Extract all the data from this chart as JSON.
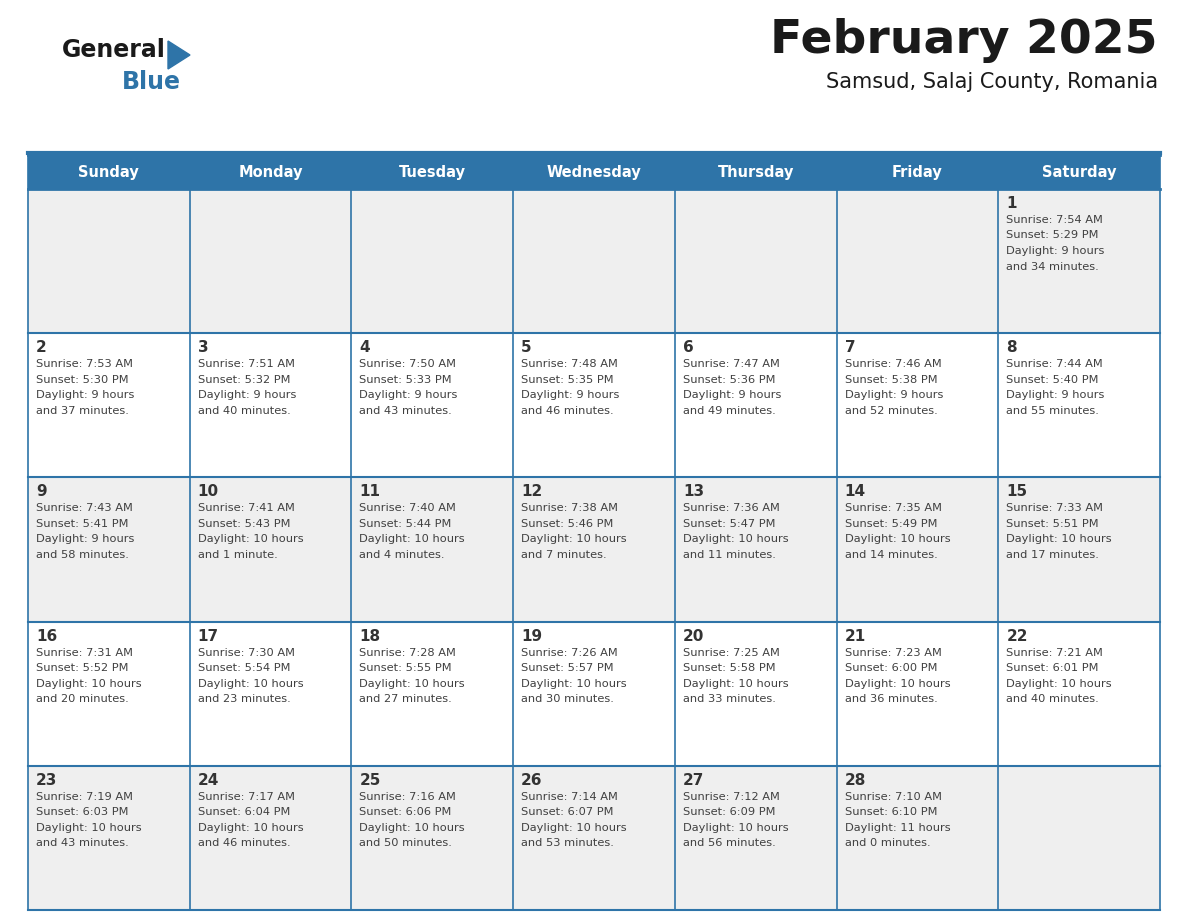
{
  "title": "February 2025",
  "subtitle": "Samsud, Salaj County, Romania",
  "header_bg": "#2E74A8",
  "header_text_color": "#FFFFFF",
  "cell_bg_odd": "#EFEFEF",
  "cell_bg_even": "#FFFFFF",
  "border_color": "#2E74A8",
  "text_color": "#404040",
  "day_num_color": "#333333",
  "days_of_week": [
    "Sunday",
    "Monday",
    "Tuesday",
    "Wednesday",
    "Thursday",
    "Friday",
    "Saturday"
  ],
  "calendar_data": [
    [
      null,
      null,
      null,
      null,
      null,
      null,
      {
        "day": 1,
        "sunrise": "7:54 AM",
        "sunset": "5:29 PM",
        "daylight": "9 hours",
        "daylight2": "and 34 minutes."
      }
    ],
    [
      {
        "day": 2,
        "sunrise": "7:53 AM",
        "sunset": "5:30 PM",
        "daylight": "9 hours",
        "daylight2": "and 37 minutes."
      },
      {
        "day": 3,
        "sunrise": "7:51 AM",
        "sunset": "5:32 PM",
        "daylight": "9 hours",
        "daylight2": "and 40 minutes."
      },
      {
        "day": 4,
        "sunrise": "7:50 AM",
        "sunset": "5:33 PM",
        "daylight": "9 hours",
        "daylight2": "and 43 minutes."
      },
      {
        "day": 5,
        "sunrise": "7:48 AM",
        "sunset": "5:35 PM",
        "daylight": "9 hours",
        "daylight2": "and 46 minutes."
      },
      {
        "day": 6,
        "sunrise": "7:47 AM",
        "sunset": "5:36 PM",
        "daylight": "9 hours",
        "daylight2": "and 49 minutes."
      },
      {
        "day": 7,
        "sunrise": "7:46 AM",
        "sunset": "5:38 PM",
        "daylight": "9 hours",
        "daylight2": "and 52 minutes."
      },
      {
        "day": 8,
        "sunrise": "7:44 AM",
        "sunset": "5:40 PM",
        "daylight": "9 hours",
        "daylight2": "and 55 minutes."
      }
    ],
    [
      {
        "day": 9,
        "sunrise": "7:43 AM",
        "sunset": "5:41 PM",
        "daylight": "9 hours",
        "daylight2": "and 58 minutes."
      },
      {
        "day": 10,
        "sunrise": "7:41 AM",
        "sunset": "5:43 PM",
        "daylight": "10 hours",
        "daylight2": "and 1 minute."
      },
      {
        "day": 11,
        "sunrise": "7:40 AM",
        "sunset": "5:44 PM",
        "daylight": "10 hours",
        "daylight2": "and 4 minutes."
      },
      {
        "day": 12,
        "sunrise": "7:38 AM",
        "sunset": "5:46 PM",
        "daylight": "10 hours",
        "daylight2": "and 7 minutes."
      },
      {
        "day": 13,
        "sunrise": "7:36 AM",
        "sunset": "5:47 PM",
        "daylight": "10 hours",
        "daylight2": "and 11 minutes."
      },
      {
        "day": 14,
        "sunrise": "7:35 AM",
        "sunset": "5:49 PM",
        "daylight": "10 hours",
        "daylight2": "and 14 minutes."
      },
      {
        "day": 15,
        "sunrise": "7:33 AM",
        "sunset": "5:51 PM",
        "daylight": "10 hours",
        "daylight2": "and 17 minutes."
      }
    ],
    [
      {
        "day": 16,
        "sunrise": "7:31 AM",
        "sunset": "5:52 PM",
        "daylight": "10 hours",
        "daylight2": "and 20 minutes."
      },
      {
        "day": 17,
        "sunrise": "7:30 AM",
        "sunset": "5:54 PM",
        "daylight": "10 hours",
        "daylight2": "and 23 minutes."
      },
      {
        "day": 18,
        "sunrise": "7:28 AM",
        "sunset": "5:55 PM",
        "daylight": "10 hours",
        "daylight2": "and 27 minutes."
      },
      {
        "day": 19,
        "sunrise": "7:26 AM",
        "sunset": "5:57 PM",
        "daylight": "10 hours",
        "daylight2": "and 30 minutes."
      },
      {
        "day": 20,
        "sunrise": "7:25 AM",
        "sunset": "5:58 PM",
        "daylight": "10 hours",
        "daylight2": "and 33 minutes."
      },
      {
        "day": 21,
        "sunrise": "7:23 AM",
        "sunset": "6:00 PM",
        "daylight": "10 hours",
        "daylight2": "and 36 minutes."
      },
      {
        "day": 22,
        "sunrise": "7:21 AM",
        "sunset": "6:01 PM",
        "daylight": "10 hours",
        "daylight2": "and 40 minutes."
      }
    ],
    [
      {
        "day": 23,
        "sunrise": "7:19 AM",
        "sunset": "6:03 PM",
        "daylight": "10 hours",
        "daylight2": "and 43 minutes."
      },
      {
        "day": 24,
        "sunrise": "7:17 AM",
        "sunset": "6:04 PM",
        "daylight": "10 hours",
        "daylight2": "and 46 minutes."
      },
      {
        "day": 25,
        "sunrise": "7:16 AM",
        "sunset": "6:06 PM",
        "daylight": "10 hours",
        "daylight2": "and 50 minutes."
      },
      {
        "day": 26,
        "sunrise": "7:14 AM",
        "sunset": "6:07 PM",
        "daylight": "10 hours",
        "daylight2": "and 53 minutes."
      },
      {
        "day": 27,
        "sunrise": "7:12 AM",
        "sunset": "6:09 PM",
        "daylight": "10 hours",
        "daylight2": "and 56 minutes."
      },
      {
        "day": 28,
        "sunrise": "7:10 AM",
        "sunset": "6:10 PM",
        "daylight": "11 hours",
        "daylight2": "and 0 minutes."
      },
      null
    ]
  ]
}
